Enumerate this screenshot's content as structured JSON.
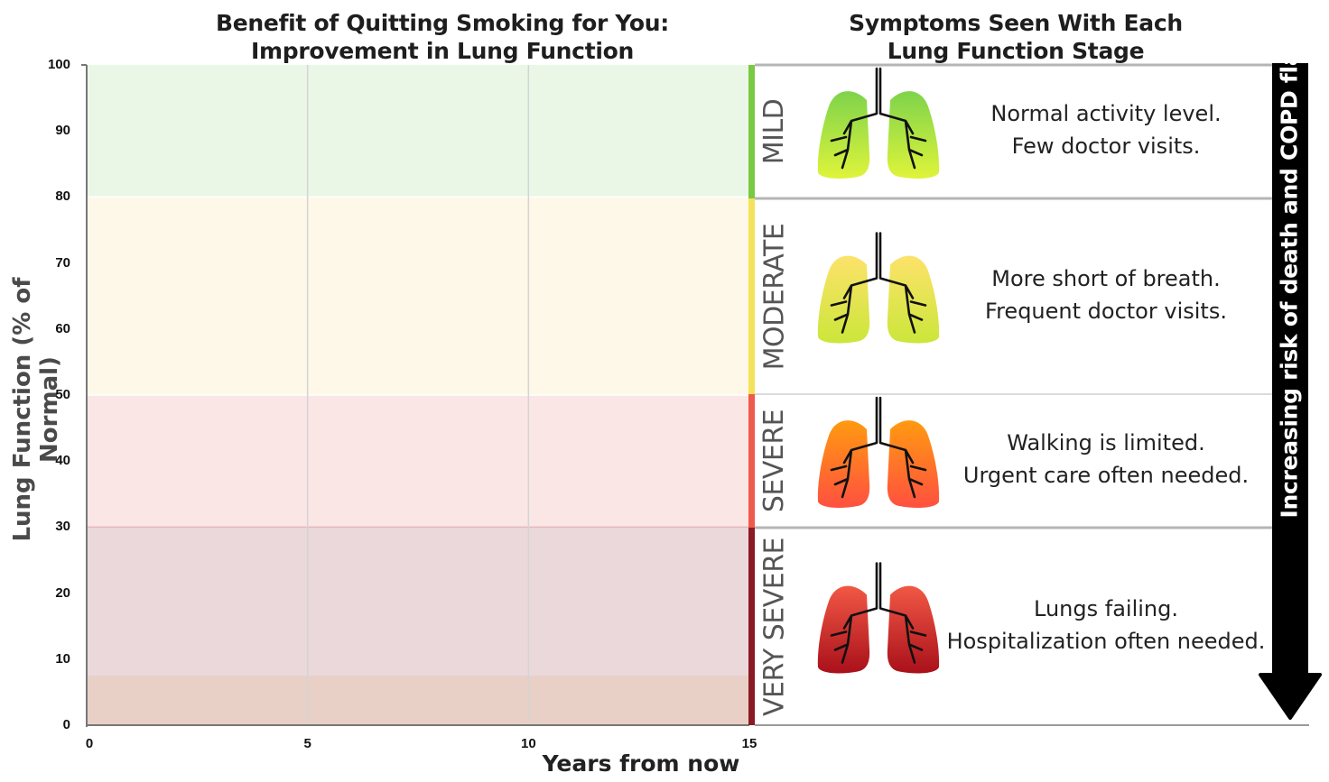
{
  "titles": {
    "left": "Benefit of Quitting Smoking for You:\nImprovement in Lung Function",
    "left_line1": "Benefit of Quitting Smoking for You:",
    "left_line2": "Improvement in Lung Function",
    "right_line1": "Symptoms Seen With Each",
    "right_line2": "Lung Function Stage"
  },
  "chart_data": {
    "type": "area",
    "title": "Benefit of Quitting Smoking for You: Improvement in Lung Function",
    "xlabel": "Years from now",
    "ylabel": "Lung Function (% of Normal)",
    "xlim": [
      0,
      15
    ],
    "ylim": [
      0,
      100
    ],
    "x_ticks": [
      0,
      5,
      10,
      15
    ],
    "y_ticks": [
      0,
      10,
      20,
      30,
      40,
      50,
      60,
      70,
      80,
      90,
      100
    ],
    "grid": "vertical",
    "bands": [
      {
        "name": "MILD",
        "from": 80,
        "to": 100,
        "color": "#eaf7e6"
      },
      {
        "name": "MODERATE",
        "from": 50,
        "to": 80,
        "color": "#fdf8e8"
      },
      {
        "name": "SEVERE",
        "from": 30,
        "to": 50,
        "color": "#fbe6e6"
      },
      {
        "name": "VERY SEVERE",
        "from": 0,
        "to": 30,
        "color": "#ead8db"
      }
    ],
    "bottom_band": {
      "from": 0,
      "to": 7.5,
      "color": "#e8d0c6"
    }
  },
  "stages": [
    {
      "label": "MILD",
      "line1": "Normal activity level.",
      "line2": "Few doctor visits.",
      "bar_color": "#7ac943",
      "lung_top": "#7ed34b",
      "lung_bottom": "#dff43a",
      "icon": "lungs-icon"
    },
    {
      "label": "MODERATE",
      "line1": "More short of breath.",
      "line2": "Frequent doctor visits.",
      "bar_color": "#f2e35a",
      "lung_top": "#fde26a",
      "lung_bottom": "#cbe63a",
      "icon": "lungs-icon"
    },
    {
      "label": "SEVERE",
      "line1": "Walking is limited.",
      "line2": "Urgent care often needed.",
      "bar_color": "#ef5a4a",
      "lung_top": "#ff9a10",
      "lung_bottom": "#ff5040",
      "icon": "lungs-icon"
    },
    {
      "label": "VERY SEVERE",
      "line1": "Lungs failing.",
      "line2": "Hospitalization often needed.",
      "bar_color": "#8a1a24",
      "lung_top": "#f25845",
      "lung_bottom": "#a9101a",
      "icon": "lungs-icon"
    }
  ],
  "risk_arrow": {
    "label": "Increasing risk of death and COPD flare-ups",
    "color": "#000000"
  }
}
